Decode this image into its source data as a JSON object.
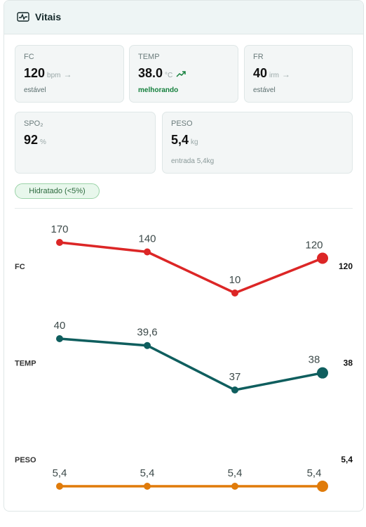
{
  "header": {
    "title": "Vitais"
  },
  "cards": [
    {
      "label": "FC",
      "value": "120",
      "unit": "bpm",
      "status": "estável"
    },
    {
      "label": "TEMP",
      "value": "38.0",
      "unit": "°C",
      "status": "melhorando"
    },
    {
      "label": "FR",
      "value": "40",
      "unit": "irm",
      "status": "estável"
    },
    {
      "label": "SPO₂",
      "value": "92",
      "unit": "%"
    },
    {
      "label": "PESO",
      "value": "5,4",
      "unit": "kg",
      "status": "entrada 5,4kg"
    }
  ],
  "badge": "Hidratado (<5%)",
  "trends": [
    {
      "name": "FC",
      "color": "#dc2626",
      "values": [
        170,
        140,
        10,
        120
      ]
    },
    {
      "name": "TEMP",
      "color": "#0f5e5e",
      "values": [
        40,
        39.6,
        37,
        38
      ],
      "value_labels": [
        "40",
        "39,6",
        "37",
        "38"
      ]
    },
    {
      "name": "PESO",
      "color": "#e07b0a",
      "values": [
        5.4,
        5.4,
        5.4,
        5.4
      ],
      "value_labels": [
        "5,4",
        "5,4",
        "5,4",
        "5,4"
      ]
    }
  ]
}
